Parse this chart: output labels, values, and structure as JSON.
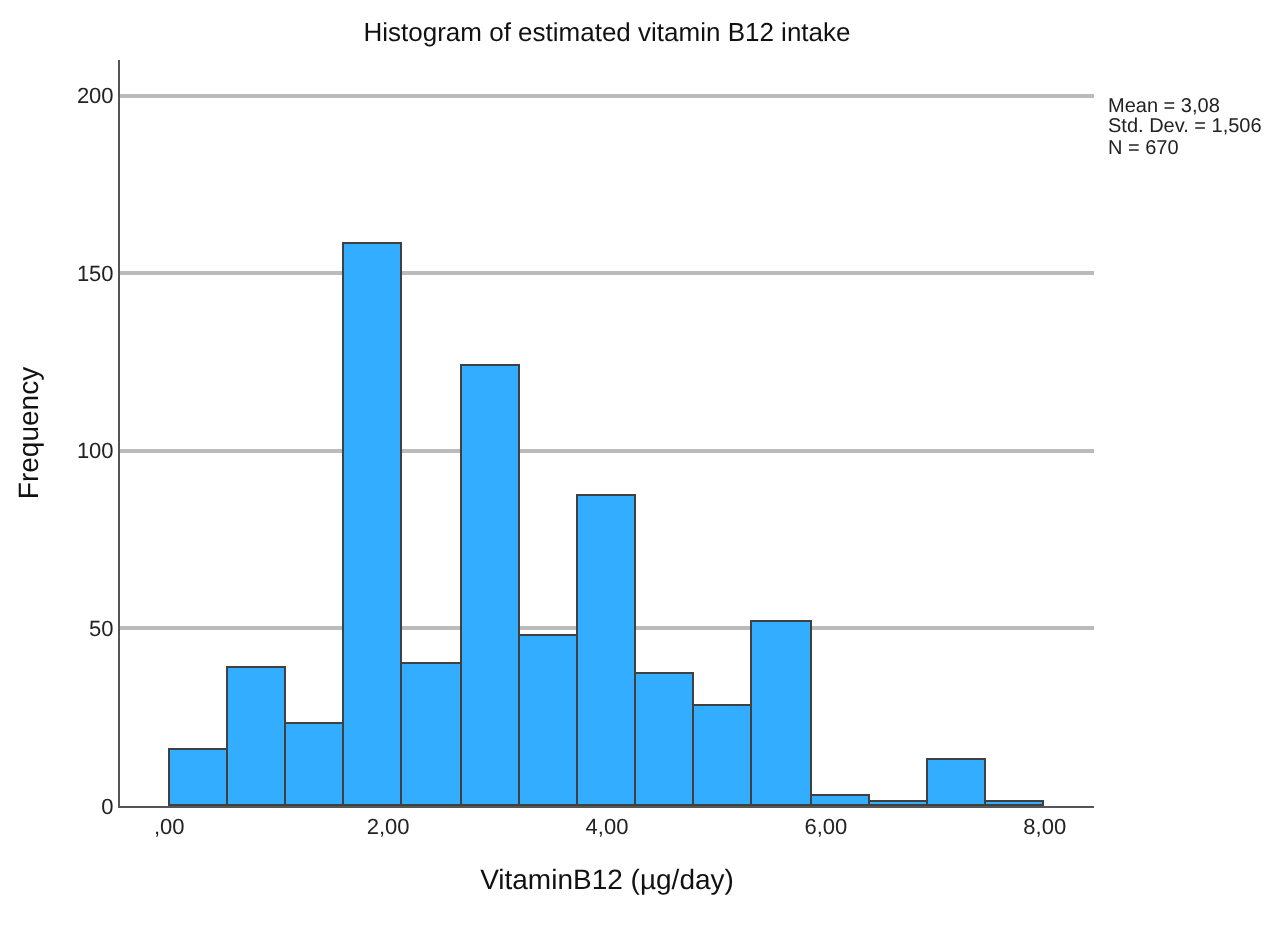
{
  "chart_data": {
    "type": "histogram",
    "title": "Histogram of estimated vitamin B12 intake",
    "xlabel": "VitaminB12 (µg/day)",
    "ylabel": "Frequency",
    "bins": [
      0,
      0.533,
      1.067,
      1.6,
      2.133,
      2.667,
      3.2,
      3.733,
      4.267,
      4.8,
      5.333,
      5.867,
      6.4,
      6.933,
      7.467,
      8
    ],
    "values": [
      16,
      39,
      23,
      158,
      40,
      124,
      48,
      87,
      37,
      28,
      52,
      3,
      1,
      13,
      1
    ],
    "color": "#33adff",
    "xlim": [
      -0.45,
      8.45
    ],
    "xticks": [
      {
        "value": 0,
        "label": ",00"
      },
      {
        "value": 2,
        "label": "2,00"
      },
      {
        "value": 4,
        "label": "4,00"
      },
      {
        "value": 6,
        "label": "6,00"
      },
      {
        "value": 8,
        "label": "8,00"
      }
    ],
    "ylim": [
      0,
      210
    ],
    "yticks": [
      0,
      50,
      100,
      150,
      200
    ],
    "grid": "y",
    "annotations": [
      "Mean = 3,08",
      "Std. Dev. = 1,506",
      "N = 670"
    ]
  }
}
